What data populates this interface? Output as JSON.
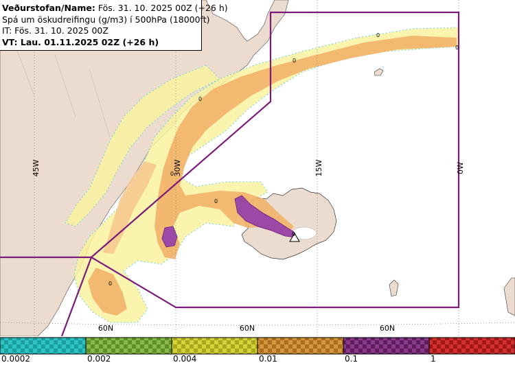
{
  "header": {
    "line1_bold": "Veðurstofan/Name:",
    "line1_rest": " Fös. 31. 10. 2025 00Z (+26 h)",
    "line2": "Spá um öskudreifingu (g/m3) í 500hPa (18000ft)",
    "line3": "IT: Fös. 31. 10. 2025 00Z",
    "line4": "VT: Lau. 01.11.2025 02Z (+26 h)"
  },
  "map": {
    "lon_labels": [
      "45W",
      "30W",
      "15W",
      "0W"
    ],
    "lat_labels": [
      "60N",
      "60N",
      "60N"
    ],
    "contour_labels": [
      "0",
      "0",
      "0",
      "0",
      "0",
      "0",
      "0",
      "0"
    ],
    "colors": {
      "land": "#ecdcd0",
      "sea": "#ffffff",
      "region_border": "#7a1a7a",
      "grid": "#666666"
    }
  },
  "legend": {
    "bins": [
      {
        "color": "#2ec4c4",
        "dark": "#1a9e9e"
      },
      {
        "color": "#8ab84a",
        "dark": "#5f8f2a"
      },
      {
        "color": "#d4d43a",
        "dark": "#a8a81e"
      },
      {
        "color": "#d4963c",
        "dark": "#aa6e1e"
      },
      {
        "color": "#8a3a8a",
        "dark": "#5e1e5e"
      },
      {
        "color": "#d43030",
        "dark": "#a01818"
      }
    ],
    "labels": [
      "0.0002",
      "0.002",
      "0.004",
      "0.01",
      "0.1",
      "1"
    ]
  }
}
